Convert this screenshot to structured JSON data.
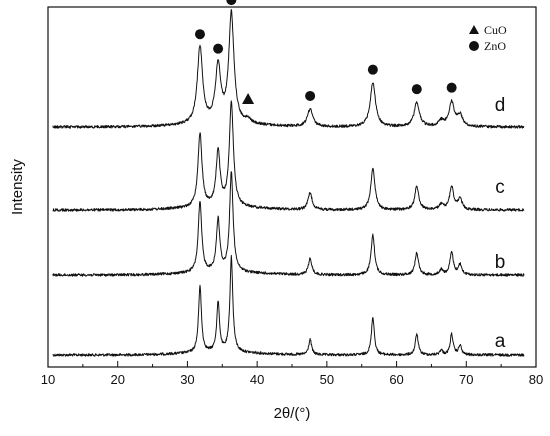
{
  "chart_data": {
    "type": "line",
    "xlabel": "2θ/(°)",
    "ylabel": "Intensity",
    "xlim": [
      10,
      80
    ],
    "x_ticks": [
      10,
      20,
      30,
      40,
      50,
      60,
      70,
      80
    ],
    "y_ticks_shown": false,
    "grid": false,
    "legend": {
      "placement": "top-right",
      "entries": [
        {
          "marker": "triangle",
          "label": "CuO"
        },
        {
          "marker": "circle",
          "label": "ZnO"
        }
      ]
    },
    "series": [
      {
        "name": "a",
        "offset": 0
      },
      {
        "name": "b",
        "offset": 1
      },
      {
        "name": "c",
        "offset": 2
      },
      {
        "name": "d",
        "offset": 3
      }
    ],
    "peaks": [
      {
        "x": 31.8,
        "intensity": 0.7
      },
      {
        "x": 34.4,
        "intensity": 0.52
      },
      {
        "x": 36.3,
        "intensity": 1.0
      },
      {
        "x": 47.6,
        "intensity": 0.16
      },
      {
        "x": 56.6,
        "intensity": 0.4
      },
      {
        "x": 62.9,
        "intensity": 0.22
      },
      {
        "x": 66.4,
        "intensity": 0.05
      },
      {
        "x": 67.9,
        "intensity": 0.22
      },
      {
        "x": 69.1,
        "intensity": 0.1
      }
    ],
    "annotations": [
      {
        "marker": "circle",
        "phase": "ZnO",
        "x": 31.8,
        "series": "d"
      },
      {
        "marker": "circle",
        "phase": "ZnO",
        "x": 34.4,
        "series": "d"
      },
      {
        "marker": "circle",
        "phase": "ZnO",
        "x": 36.3,
        "series": "d"
      },
      {
        "marker": "triangle",
        "phase": "CuO",
        "x": 38.7,
        "series": "d"
      },
      {
        "marker": "circle",
        "phase": "ZnO",
        "x": 47.6,
        "series": "d"
      },
      {
        "marker": "circle",
        "phase": "ZnO",
        "x": 56.6,
        "series": "d"
      },
      {
        "marker": "circle",
        "phase": "ZnO",
        "x": 62.9,
        "series": "d"
      },
      {
        "marker": "circle",
        "phase": "ZnO",
        "x": 67.9,
        "series": "d"
      }
    ],
    "colors": {
      "line": "#111111",
      "background": "#ffffff"
    }
  }
}
